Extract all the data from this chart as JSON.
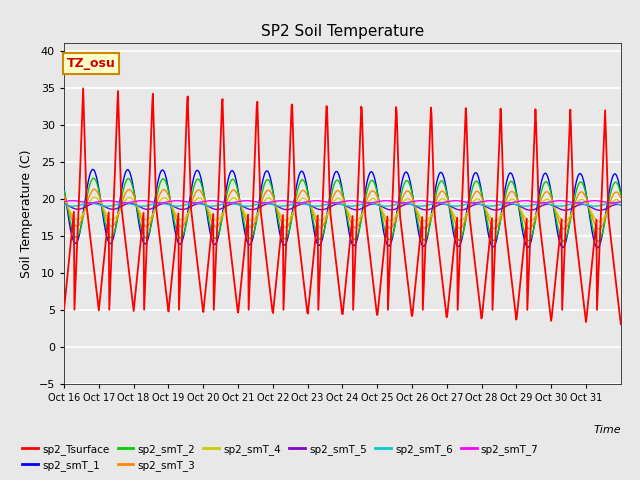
{
  "title": "SP2 Soil Temperature",
  "ylabel": "Soil Temperature (C)",
  "xlabel": "Time",
  "annotation": "TZ_osu",
  "ylim": [
    -5,
    41
  ],
  "yticks": [
    -5,
    0,
    5,
    10,
    15,
    20,
    25,
    30,
    35,
    40
  ],
  "x_labels": [
    "Oct 16",
    "Oct 17",
    "Oct 18",
    "Oct 19",
    "Oct 20",
    "Oct 21",
    "Oct 22",
    "Oct 23",
    "Oct 24",
    "Oct 25",
    "Oct 26",
    "Oct 27",
    "Oct 28",
    "Oct 29",
    "Oct 30",
    "Oct 31"
  ],
  "series_colors": {
    "sp2_Tsurface": "#ff0000",
    "sp2_smT_1": "#0000ff",
    "sp2_smT_2": "#00cc00",
    "sp2_smT_3": "#ff8800",
    "sp2_smT_4": "#cccc00",
    "sp2_smT_5": "#8800cc",
    "sp2_smT_6": "#00cccc",
    "sp2_smT_7": "#ff00ff"
  },
  "legend_order": [
    "sp2_Tsurface",
    "sp2_smT_1",
    "sp2_smT_2",
    "sp2_smT_3",
    "sp2_smT_4",
    "sp2_smT_5",
    "sp2_smT_6",
    "sp2_smT_7"
  ],
  "bg_color": "#e8e8e8",
  "n_points": 960,
  "n_days": 16
}
